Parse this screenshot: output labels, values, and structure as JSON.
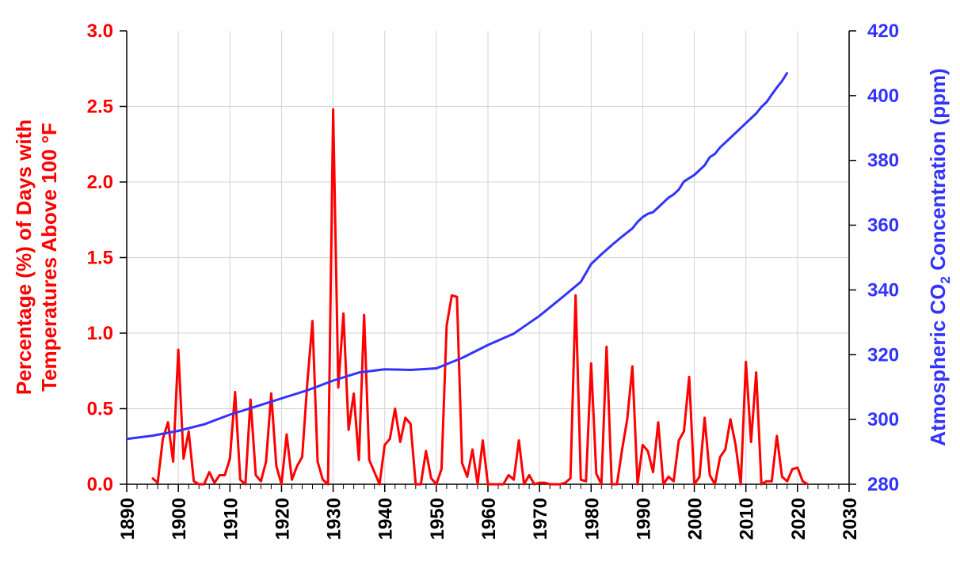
{
  "chart_data": {
    "type": "line",
    "x_range": [
      1890,
      2030
    ],
    "x_tick_step": 10,
    "x_minor_step": 2,
    "grid": true,
    "left_axis": {
      "title": "Percentage (%) of Days with Temperatures Above 100 °F",
      "title_lines": [
        "Percentage (%) of Days with",
        "Temperatures Above 100 °F"
      ],
      "range": [
        0,
        3.0
      ],
      "ticks": [
        "0.0",
        "0.5",
        "1.0",
        "1.5",
        "2.0",
        "2.5",
        "3.0"
      ],
      "color": "#ff0000"
    },
    "right_axis": {
      "title_prefix": "Atmospheric CO",
      "title_sub": "2",
      "title_suffix": " Concentration (ppm)",
      "range": [
        280,
        420
      ],
      "ticks": [
        "280",
        "300",
        "320",
        "340",
        "360",
        "380",
        "400",
        "420"
      ],
      "color": "#3333ff"
    },
    "x_ticks": [
      "1890",
      "1900",
      "1910",
      "1920",
      "1930",
      "1940",
      "1950",
      "1960",
      "1970",
      "1980",
      "1990",
      "2000",
      "2010",
      "2020",
      "2030"
    ],
    "series": [
      {
        "axis": "left",
        "color": "#ff0000",
        "x": [
          1895,
          1896,
          1897,
          1898,
          1899,
          1900,
          1901,
          1902,
          1903,
          1904,
          1905,
          1906,
          1907,
          1908,
          1909,
          1910,
          1911,
          1912,
          1913,
          1914,
          1915,
          1916,
          1917,
          1918,
          1919,
          1920,
          1921,
          1922,
          1923,
          1924,
          1925,
          1926,
          1927,
          1928,
          1929,
          1930,
          1931,
          1932,
          1933,
          1934,
          1935,
          1936,
          1937,
          1938,
          1939,
          1940,
          1941,
          1942,
          1943,
          1944,
          1945,
          1946,
          1947,
          1948,
          1949,
          1950,
          1951,
          1952,
          1953,
          1954,
          1955,
          1956,
          1957,
          1958,
          1959,
          1960,
          1961,
          1962,
          1963,
          1964,
          1965,
          1966,
          1967,
          1968,
          1969,
          1970,
          1971,
          1972,
          1973,
          1974,
          1975,
          1976,
          1977,
          1978,
          1979,
          1980,
          1981,
          1982,
          1983,
          1984,
          1985,
          1986,
          1987,
          1988,
          1989,
          1990,
          1991,
          1992,
          1993,
          1994,
          1995,
          1996,
          1997,
          1998,
          1999,
          2000,
          2001,
          2002,
          2003,
          2004,
          2005,
          2006,
          2007,
          2008,
          2009,
          2010,
          2011,
          2012,
          2013,
          2014,
          2015,
          2016,
          2017,
          2018,
          2019,
          2020,
          2021,
          2022
        ],
        "values": [
          0.04,
          0.01,
          0.3,
          0.41,
          0.15,
          0.89,
          0.17,
          0.35,
          0.02,
          0.0,
          0.0,
          0.08,
          0.01,
          0.06,
          0.06,
          0.17,
          0.61,
          0.03,
          0.0,
          0.56,
          0.06,
          0.02,
          0.15,
          0.6,
          0.12,
          0.0,
          0.33,
          0.03,
          0.12,
          0.18,
          0.67,
          1.08,
          0.15,
          0.03,
          0.0,
          2.48,
          0.64,
          1.13,
          0.36,
          0.6,
          0.16,
          1.12,
          0.16,
          0.08,
          0.0,
          0.26,
          0.3,
          0.5,
          0.28,
          0.44,
          0.4,
          0.0,
          0.0,
          0.22,
          0.04,
          0.0,
          0.1,
          1.05,
          1.25,
          1.24,
          0.14,
          0.05,
          0.23,
          0.0,
          0.29,
          0.0,
          0.0,
          0.0,
          0.0,
          0.06,
          0.03,
          0.29,
          0.0,
          0.06,
          0.0,
          0.01,
          0.01,
          0.0,
          0.0,
          0.0,
          0.01,
          0.04,
          1.25,
          0.03,
          0.02,
          0.8,
          0.07,
          0.0,
          0.91,
          0.0,
          0.0,
          0.23,
          0.43,
          0.78,
          0.0,
          0.26,
          0.22,
          0.08,
          0.41,
          0.0,
          0.05,
          0.02,
          0.29,
          0.35,
          0.71,
          0.0,
          0.05,
          0.44,
          0.06,
          0.0,
          0.18,
          0.23,
          0.43,
          0.26,
          0.0,
          0.81,
          0.28,
          0.74,
          0.0,
          0.02,
          0.02,
          0.32,
          0.05,
          0.02,
          0.1,
          0.11,
          0.02,
          0.0
        ]
      },
      {
        "axis": "right",
        "color": "#3333ff",
        "x": [
          1890,
          1895,
          1900,
          1905,
          1910,
          1915,
          1920,
          1925,
          1930,
          1935,
          1940,
          1945,
          1950,
          1955,
          1960,
          1965,
          1970,
          1975,
          1978,
          1980,
          1982,
          1984,
          1986,
          1988,
          1989,
          1990,
          1991,
          1992,
          1993,
          1994,
          1995,
          1996,
          1997,
          1998,
          1999,
          2000,
          2001,
          2002,
          2003,
          2004,
          2005,
          2006,
          2007,
          2008,
          2009,
          2010,
          2011,
          2012,
          2013,
          2014,
          2015,
          2016,
          2017,
          2018
        ],
        "values": [
          294,
          295,
          296.5,
          298.5,
          301.5,
          304,
          306.5,
          309,
          312,
          314.5,
          315.5,
          315.3,
          315.8,
          319,
          323,
          326.5,
          332,
          338.5,
          342.5,
          348,
          351,
          353.8,
          356.5,
          359,
          361,
          362.5,
          363.5,
          364,
          365.5,
          367,
          368.5,
          369.5,
          371,
          373.5,
          374.5,
          375.5,
          377,
          378.5,
          381,
          382,
          384,
          385.5,
          387,
          388.5,
          390,
          391.5,
          393,
          394.5,
          396.5,
          398,
          400.3,
          402.5,
          404.5,
          407
        ]
      }
    ]
  }
}
